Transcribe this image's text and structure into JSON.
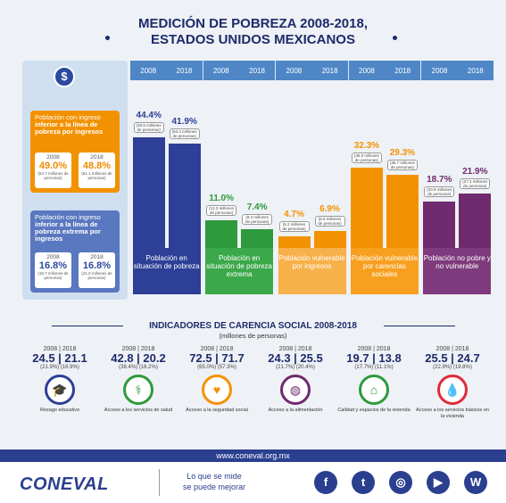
{
  "title": {
    "line1": "MEDICIÓN DE POBREZA 2008-2018,",
    "line2": "ESTADOS UNIDOS MEXICANOS"
  },
  "years": {
    "a": "2008",
    "b": "2018"
  },
  "left_panel": {
    "coin_icon": "money-icon",
    "orange": {
      "text_lite": "Población con ingreso ",
      "text_bold": "inferior a la línea de pobreza por ingresos",
      "v2008": "49.0%",
      "s2008": "(54.7 millones de personas)",
      "v2018": "48.8%",
      "s2018": "(61.1 millones de personas)"
    },
    "blue": {
      "text_lite": "Población con ingreso ",
      "text_bold": "inferior a la línea de pobreza extrema por ingresos",
      "v2008": "16.8%",
      "s2008": "(18.7 millones de personas)",
      "v2018": "16.8%",
      "s2018": "(21.0 millones de personas)"
    }
  },
  "chart_data": {
    "type": "bar",
    "categories": [
      "Población en situación de pobreza",
      "Población en situación de pobreza extrema",
      "Población vulnerable por ingresos",
      "Población vulnerable por carencias sociales",
      "Población no pobre y no vulnerable"
    ],
    "series": [
      {
        "name": "2008",
        "values": [
          44.4,
          11.0,
          4.7,
          32.3,
          18.7
        ]
      },
      {
        "name": "2018",
        "values": [
          41.9,
          7.4,
          6.9,
          29.3,
          21.9
        ]
      }
    ],
    "labels_pct": [
      [
        "44.4%",
        "41.9%"
      ],
      [
        "11.0%",
        "7.4%"
      ],
      [
        "4.7%",
        "6.9%"
      ],
      [
        "32.3%",
        "29.3%"
      ],
      [
        "18.7%",
        "21.9%"
      ]
    ],
    "labels_millions": [
      [
        "(49.5 millones de personas)",
        "(52.4 millones de personas)"
      ],
      [
        "(12.3 millones de personas)",
        "(9.3 millones de personas)"
      ],
      [
        "(5.2 millones de personas)",
        "(8.6 millones de personas)"
      ],
      [
        "(36.0 millones de personas)",
        "(36.7 millones de personas)"
      ],
      [
        "(20.9 millones de personas)",
        "(27.4 millones de personas)"
      ]
    ],
    "colors": [
      "#2d3f96",
      "#2e9a3c",
      "#f29200",
      "#f29200",
      "#6f2b6e"
    ],
    "light_colors": [
      "#2d3f96",
      "#3ba84a",
      "#f7b04a",
      "#f7a020",
      "#7e3a7d"
    ],
    "ylim": [
      0,
      50
    ]
  },
  "indicators": {
    "title": "INDICADORES DE CARENCIA SOCIAL 2008-2018",
    "subtitle": "(millones de personas)",
    "items": [
      {
        "v1": "24.5",
        "v2": "21.1",
        "p1": "(21.9%)",
        "p2": "(16.9%)",
        "label": "Rezago educativo",
        "icon": "graduation-cap-icon",
        "color": "#2d3f96"
      },
      {
        "v1": "42.8",
        "v2": "20.2",
        "p1": "(38.4%)",
        "p2": "(16.2%)",
        "label": "Acceso a los servicios de salud",
        "icon": "doctor-icon",
        "color": "#2e9a3c"
      },
      {
        "v1": "72.5",
        "v2": "71.7",
        "p1": "(65.0%)",
        "p2": "(57.3%)",
        "label": "Acceso a la seguridad social",
        "icon": "hands-icon",
        "color": "#f29200"
      },
      {
        "v1": "24.3",
        "v2": "25.5",
        "p1": "(21.7%)",
        "p2": "(20.4%)",
        "label": "Acceso a la alimentación",
        "icon": "plate-icon",
        "color": "#6f2b6e"
      },
      {
        "v1": "19.7",
        "v2": "13.8",
        "p1": "(17.7%)",
        "p2": "(11.1%)",
        "label": "Calidad y espacios de la vivienda",
        "icon": "house-hands-icon",
        "color": "#2e9a3c"
      },
      {
        "v1": "25.5",
        "v2": "24.7",
        "p1": "(22.9%)",
        "p2": "(19.8%)",
        "label": "Acceso a los servicios básicos en la vivienda",
        "icon": "faucet-icon",
        "color": "#e02b3a"
      }
    ]
  },
  "url": "www.coneval.org.mx",
  "footer": {
    "logo": "CONEVAL",
    "slogan1": "Lo que se mide",
    "slogan2": "se puede mejorar",
    "social": [
      {
        "name": "facebook-icon",
        "glyph": "f"
      },
      {
        "name": "twitter-icon",
        "glyph": "t"
      },
      {
        "name": "instagram-icon",
        "glyph": "◎"
      },
      {
        "name": "youtube-icon",
        "glyph": "▶"
      },
      {
        "name": "wordpress-icon",
        "glyph": "W"
      }
    ]
  }
}
